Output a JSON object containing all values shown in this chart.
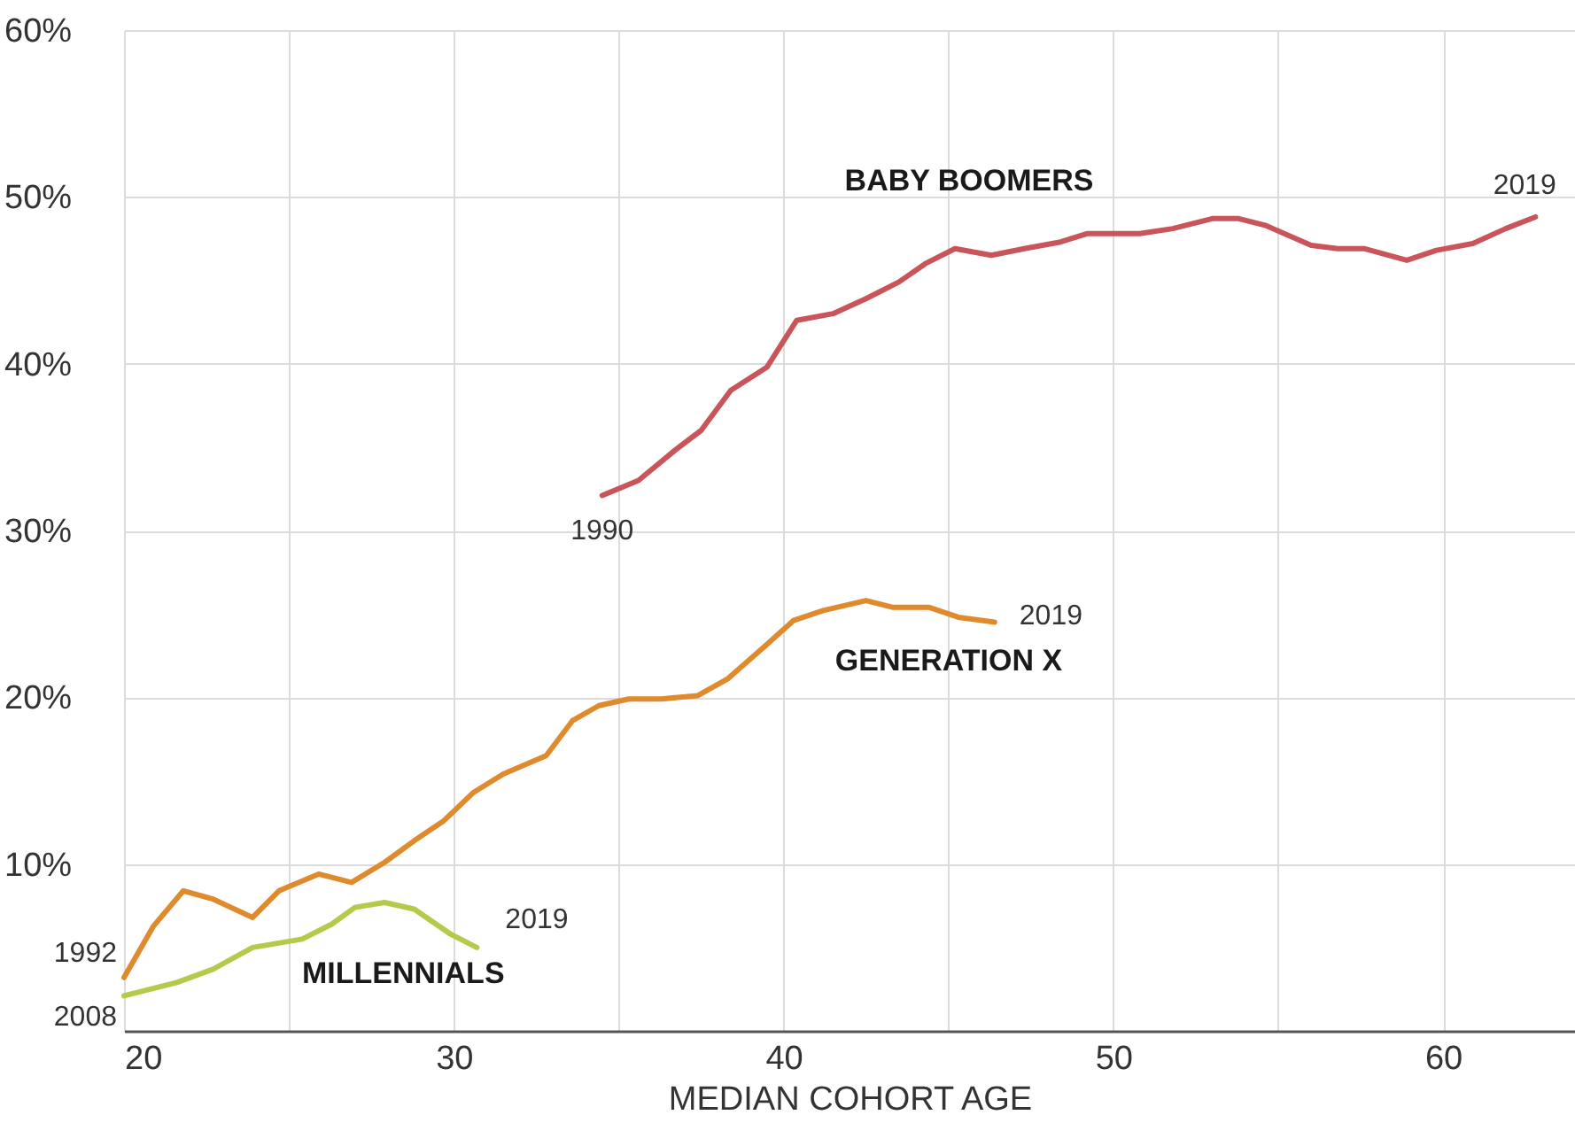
{
  "chart_data": {
    "type": "line",
    "xlabel": "MEDIAN COHORT AGE",
    "xlim": [
      20,
      64
    ],
    "ylim": [
      0,
      60
    ],
    "xticks": [
      20,
      {
        "value": 25,
        "label": null
      },
      30,
      {
        "value": 35,
        "label": null
      },
      40,
      {
        "value": 45,
        "label": null
      },
      50,
      {
        "value": 55,
        "label": null
      },
      60
    ],
    "yticks": [
      {
        "value": 10,
        "label": "10%"
      },
      {
        "value": 20,
        "label": "20%"
      },
      {
        "value": 30,
        "label": "30%"
      },
      {
        "value": 40,
        "label": "40%"
      },
      {
        "value": 50,
        "label": "50%"
      },
      {
        "value": 60,
        "label": "60%"
      }
    ],
    "grid": true,
    "line_style": "solid",
    "series": [
      {
        "name": "BABY BOOMERS",
        "color": "#c9545a",
        "x": [
          34.5,
          35.6,
          36.7,
          37.5,
          38.4,
          39.5,
          40.4,
          41.5,
          42.5,
          43.5,
          44.3,
          45.2,
          46.3,
          47.3,
          48.4,
          49.2,
          50.8,
          51.8,
          53.0,
          53.8,
          54.6,
          56.0,
          56.8,
          57.6,
          58.9,
          59.8,
          60.9,
          61.9,
          62.8
        ],
        "values": [
          32.1,
          33.0,
          34.8,
          36.0,
          38.4,
          39.8,
          42.6,
          43.0,
          43.9,
          44.9,
          46.0,
          46.9,
          46.5,
          46.9,
          47.3,
          47.8,
          47.8,
          48.1,
          48.7,
          48.7,
          48.3,
          47.1,
          46.9,
          46.9,
          46.2,
          46.8,
          47.2,
          48.1,
          48.8
        ]
      },
      {
        "name": "GENERATION X",
        "color": "#e08a2e",
        "x": [
          20.0,
          20.9,
          21.8,
          22.7,
          23.9,
          24.7,
          25.9,
          26.9,
          27.9,
          28.8,
          29.7,
          30.6,
          31.5,
          32.8,
          33.6,
          34.4,
          35.3,
          36.3,
          37.4,
          38.3,
          39.4,
          40.3,
          41.2,
          42.5,
          43.3,
          44.4,
          45.3,
          46.4
        ],
        "values": [
          3.2,
          6.3,
          8.4,
          7.9,
          6.8,
          8.4,
          9.4,
          8.9,
          10.1,
          11.4,
          12.6,
          14.3,
          15.4,
          16.5,
          18.6,
          19.5,
          19.9,
          19.9,
          20.1,
          21.1,
          23.0,
          24.6,
          25.2,
          25.8,
          25.4,
          25.4,
          24.8,
          24.5
        ]
      },
      {
        "name": "MILLENNIALS",
        "color": "#b5c94a",
        "x": [
          20.0,
          21.6,
          22.7,
          23.9,
          25.4,
          26.3,
          27.0,
          27.9,
          28.8,
          29.9,
          30.7
        ],
        "values": [
          2.1,
          2.9,
          3.7,
          5.0,
          5.5,
          6.4,
          7.4,
          7.7,
          7.3,
          5.8,
          5.0
        ]
      }
    ],
    "annotations": [
      {
        "text": "1990",
        "x": 34.5,
        "y": 32.1
      },
      {
        "text": "2019",
        "x": 62.8,
        "y": 48.8
      },
      {
        "text": "1992",
        "x": 20.0,
        "y": 3.2
      },
      {
        "text": "2019",
        "x": 46.4,
        "y": 24.5
      },
      {
        "text": "2008",
        "x": 20.0,
        "y": 2.1
      },
      {
        "text": "2019",
        "x": 30.7,
        "y": 5.0
      }
    ]
  }
}
